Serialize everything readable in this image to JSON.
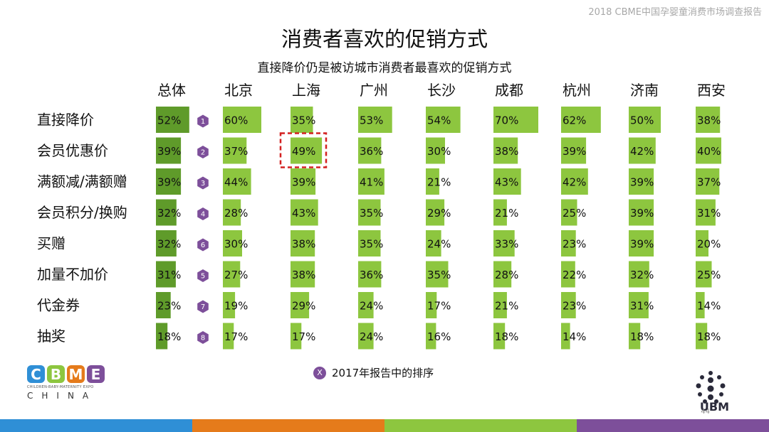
{
  "header_note": "2018 CBME中国孕婴童消费市场调查报告",
  "title": "消费者喜欢的促销方式",
  "subtitle": "直接降价仍是被访城市消费者最喜欢的促销方式",
  "legend": {
    "badge": "X",
    "text": "2017年报告中的排序"
  },
  "page_number": "44",
  "logos": {
    "cbme": "CBME",
    "cbme_sub": "CHILDREN-BABY-MATERNITY EXPO",
    "cbme_china": "CHINA",
    "ubm": "UBM"
  },
  "colors": {
    "bar_first": "#5f9b2a",
    "bar": "#8dc63f",
    "rank_badge": "#7d4f9a",
    "highlight": "#d32020",
    "footer": [
      "#2f8fd6",
      "#e57b1b",
      "#8dc63f",
      "#7d4f9a"
    ]
  },
  "chart_data": {
    "type": "bar",
    "title": "消费者喜欢的促销方式",
    "subtitle": "直接降价仍是被访城市消费者最喜欢的促销方式",
    "columns": [
      "总体",
      "北京",
      "上海",
      "广州",
      "长沙",
      "成都",
      "杭州",
      "济南",
      "西安"
    ],
    "rows": [
      "直接降价",
      "会员优惠价",
      "满额减/满额赠",
      "会员积分/换购",
      "买赠",
      "加量不加价",
      "代金券",
      "抽奖"
    ],
    "values": [
      [
        52,
        60,
        35,
        53,
        54,
        70,
        62,
        50,
        38
      ],
      [
        39,
        37,
        49,
        36,
        30,
        38,
        39,
        42,
        40
      ],
      [
        39,
        44,
        39,
        41,
        21,
        43,
        42,
        39,
        37
      ],
      [
        32,
        28,
        43,
        35,
        29,
        21,
        25,
        39,
        31
      ],
      [
        32,
        30,
        38,
        35,
        24,
        33,
        23,
        39,
        20
      ],
      [
        31,
        27,
        38,
        36,
        35,
        28,
        22,
        32,
        25
      ],
      [
        23,
        19,
        29,
        24,
        17,
        21,
        23,
        31,
        14
      ],
      [
        18,
        17,
        17,
        24,
        16,
        18,
        14,
        18,
        18
      ]
    ],
    "value_suffix": "%",
    "rank_2017": [
      1,
      2,
      3,
      4,
      6,
      5,
      7,
      8
    ],
    "highlight": {
      "row": 1,
      "column": 2
    }
  }
}
